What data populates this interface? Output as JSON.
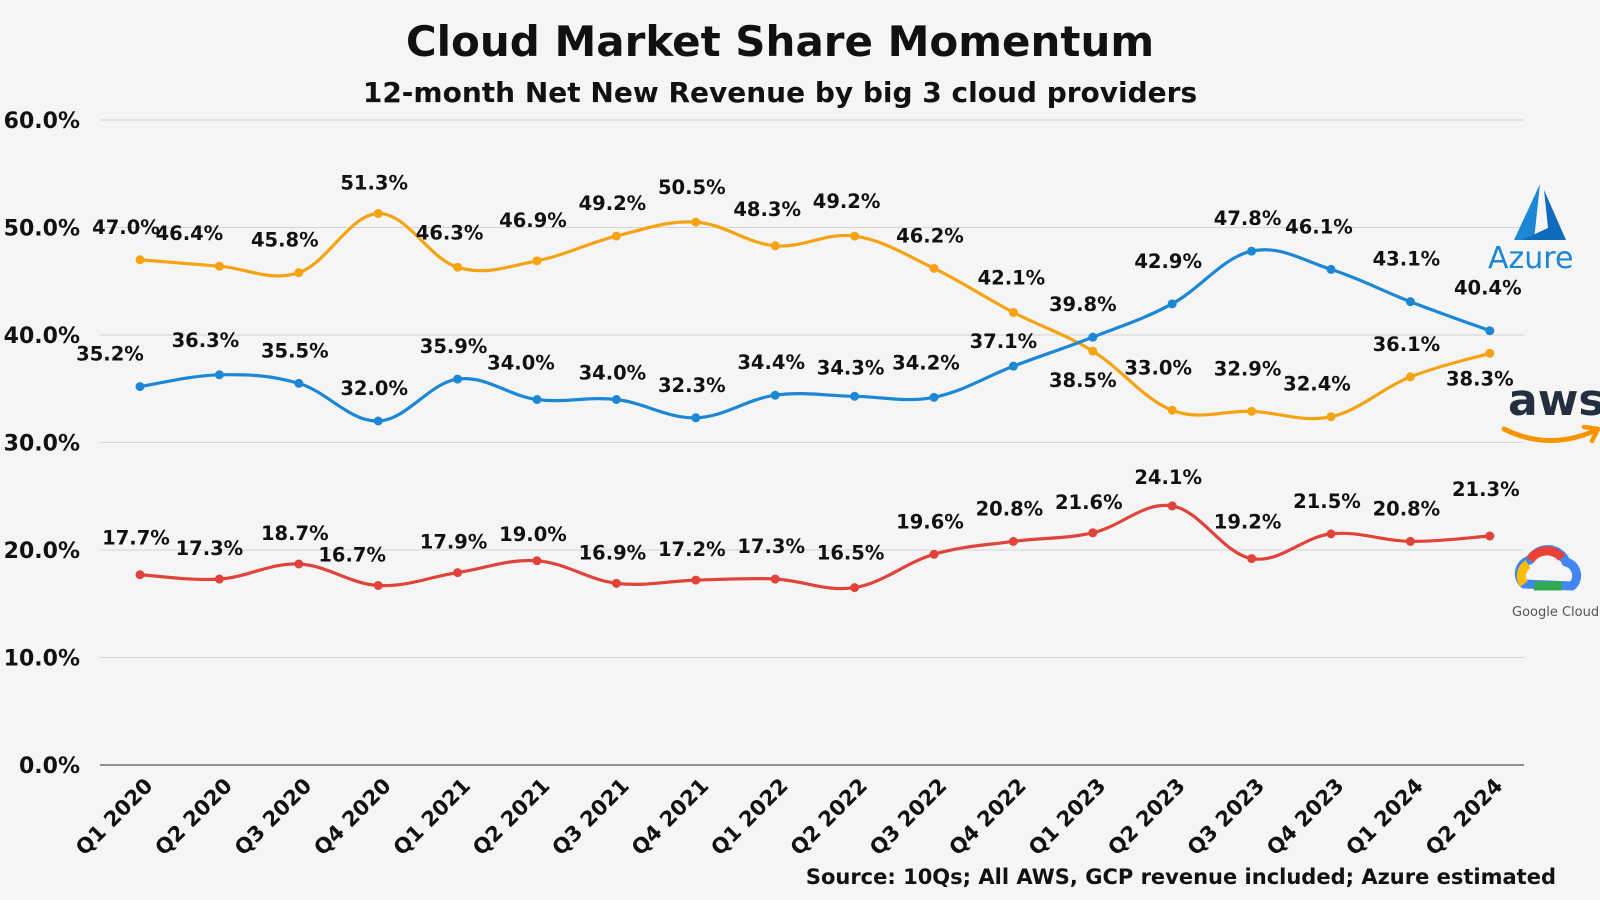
{
  "colors": {
    "Azure": "#1c87d4",
    "AWS": "#f5a313",
    "Google Cloud": "#e0433a",
    "aws_text": "#232f3e",
    "aws_smile": "#f79400"
  },
  "logos": {
    "azure_text": "Azure",
    "aws_text": "aws",
    "google_text": "Google Cloud"
  },
  "chart_data": {
    "type": "line",
    "title": "Cloud Market Share Momentum",
    "subtitle": "12-month Net New Revenue by big 3 cloud providers",
    "source": "Source: 10Qs; All AWS, GCP revenue included; Azure estimated",
    "categories": [
      "Q1 2020",
      "Q2 2020",
      "Q3 2020",
      "Q4 2020",
      "Q1 2021",
      "Q2 2021",
      "Q3 2021",
      "Q4 2021",
      "Q1 2022",
      "Q2 2022",
      "Q3 2022",
      "Q4 2022",
      "Q1 2023",
      "Q2 2023",
      "Q3 2023",
      "Q4 2023",
      "Q1 2024",
      "Q2 2024"
    ],
    "yticks": [
      "0.0%",
      "10.0%",
      "20.0%",
      "30.0%",
      "40.0%",
      "50.0%",
      "60.0%"
    ],
    "ylim": [
      0,
      60
    ],
    "grid": true,
    "series": [
      {
        "name": "AWS",
        "values": [
          47.0,
          46.4,
          45.8,
          51.3,
          46.3,
          46.9,
          49.2,
          50.5,
          48.3,
          49.2,
          46.2,
          42.1,
          38.5,
          33.0,
          32.9,
          32.4,
          36.1,
          38.3
        ],
        "labels": [
          "47.0%",
          "46.4%",
          "45.8%",
          "51.3%",
          "46.3%",
          "46.9%",
          "49.2%",
          "50.5%",
          "48.3%",
          "49.2%",
          "46.2%",
          "42.1%",
          "38.5%",
          "33.0%",
          "32.9%",
          "32.4%",
          "36.1%",
          "38.3%"
        ]
      },
      {
        "name": "Azure",
        "values": [
          35.2,
          36.3,
          35.5,
          32.0,
          35.9,
          34.0,
          34.0,
          32.3,
          34.4,
          34.3,
          34.2,
          37.1,
          39.8,
          42.9,
          47.8,
          46.1,
          43.1,
          40.4
        ],
        "labels": [
          "35.2%",
          "36.3%",
          "35.5%",
          "32.0%",
          "35.9%",
          "34.0%",
          "34.0%",
          "32.3%",
          "34.4%",
          "34.3%",
          "34.2%",
          "37.1%",
          "39.8%",
          "42.9%",
          "47.8%",
          "46.1%",
          "43.1%",
          "40.4%"
        ]
      },
      {
        "name": "Google Cloud",
        "values": [
          17.7,
          17.3,
          18.7,
          16.7,
          17.9,
          19.0,
          16.9,
          17.2,
          17.3,
          16.5,
          19.6,
          20.8,
          21.6,
          24.1,
          19.2,
          21.5,
          20.8,
          21.3
        ],
        "labels": [
          "17.7%",
          "17.3%",
          "18.7%",
          "16.7%",
          "17.9%",
          "19.0%",
          "16.9%",
          "17.2%",
          "17.3%",
          "16.5%",
          "19.6%",
          "20.8%",
          "21.6%",
          "24.1%",
          "19.2%",
          "21.5%",
          "20.8%",
          "21.3%"
        ]
      }
    ]
  }
}
